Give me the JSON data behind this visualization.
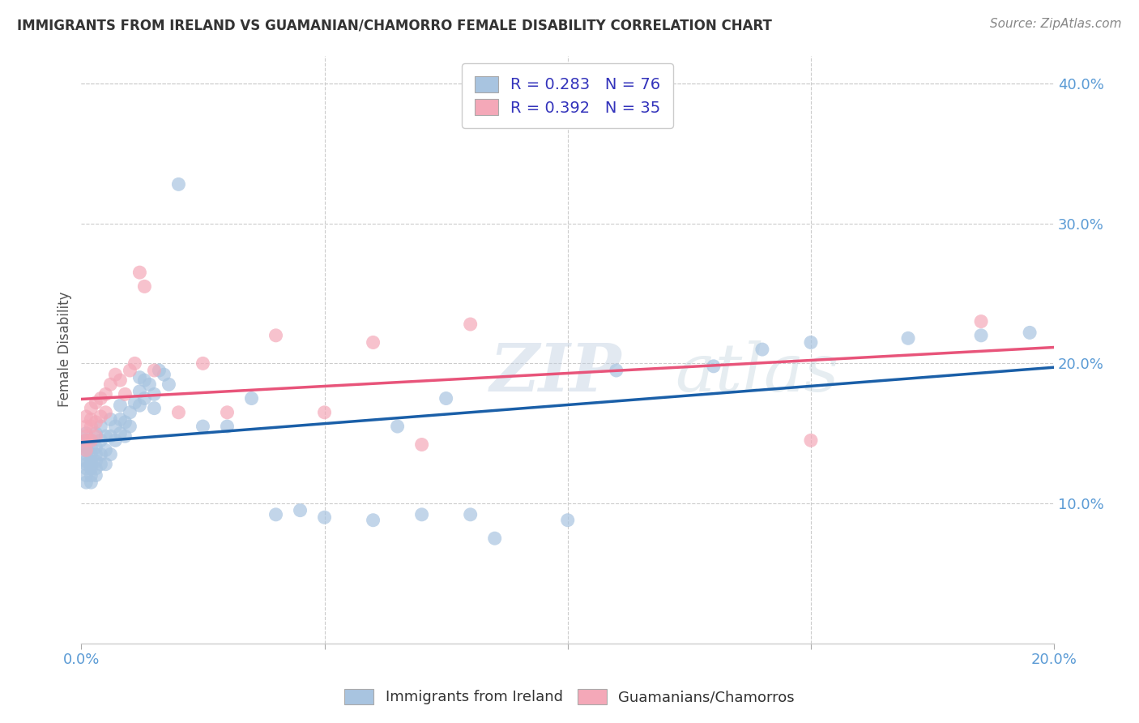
{
  "title": "IMMIGRANTS FROM IRELAND VS GUAMANIAN/CHAMORRO FEMALE DISABILITY CORRELATION CHART",
  "source": "Source: ZipAtlas.com",
  "ylabel": "Female Disability",
  "xlim": [
    0.0,
    0.2
  ],
  "ylim": [
    0.0,
    0.42
  ],
  "xticks": [
    0.0,
    0.05,
    0.1,
    0.15,
    0.2
  ],
  "yticks": [
    0.1,
    0.2,
    0.3,
    0.4
  ],
  "xticklabels": [
    "0.0%",
    "",
    "",
    "",
    "20.0%"
  ],
  "yticklabels": [
    "10.0%",
    "20.0%",
    "30.0%",
    "40.0%"
  ],
  "ireland_color": "#a8c4e0",
  "chamorro_color": "#f4a8b8",
  "ireland_line_color": "#1a5fa8",
  "chamorro_line_color": "#e8547a",
  "R_ireland": 0.283,
  "N_ireland": 76,
  "R_chamorro": 0.392,
  "N_chamorro": 35,
  "watermark": "ZIPatlas",
  "legend_label_ireland": "Immigrants from Ireland",
  "legend_label_chamorro": "Guamanians/Chamorros",
  "ireland_x": [
    0.001,
    0.001,
    0.001,
    0.001,
    0.001,
    0.001,
    0.001,
    0.001,
    0.001,
    0.001,
    0.002,
    0.002,
    0.002,
    0.002,
    0.002,
    0.002,
    0.002,
    0.002,
    0.003,
    0.003,
    0.003,
    0.003,
    0.003,
    0.003,
    0.004,
    0.004,
    0.004,
    0.004,
    0.005,
    0.005,
    0.005,
    0.006,
    0.006,
    0.006,
    0.007,
    0.007,
    0.008,
    0.008,
    0.008,
    0.009,
    0.009,
    0.01,
    0.01,
    0.011,
    0.012,
    0.012,
    0.012,
    0.013,
    0.013,
    0.014,
    0.015,
    0.015,
    0.016,
    0.017,
    0.018,
    0.02,
    0.025,
    0.03,
    0.035,
    0.04,
    0.045,
    0.05,
    0.06,
    0.065,
    0.07,
    0.075,
    0.08,
    0.085,
    0.1,
    0.11,
    0.13,
    0.14,
    0.15,
    0.17,
    0.185,
    0.195
  ],
  "ireland_y": [
    0.13,
    0.14,
    0.145,
    0.15,
    0.135,
    0.128,
    0.12,
    0.115,
    0.125,
    0.138,
    0.145,
    0.135,
    0.125,
    0.13,
    0.12,
    0.115,
    0.14,
    0.128,
    0.15,
    0.14,
    0.13,
    0.12,
    0.125,
    0.135,
    0.155,
    0.145,
    0.135,
    0.128,
    0.148,
    0.138,
    0.128,
    0.16,
    0.148,
    0.135,
    0.155,
    0.145,
    0.17,
    0.16,
    0.15,
    0.158,
    0.148,
    0.165,
    0.155,
    0.172,
    0.19,
    0.18,
    0.17,
    0.188,
    0.175,
    0.185,
    0.178,
    0.168,
    0.195,
    0.192,
    0.185,
    0.328,
    0.155,
    0.155,
    0.175,
    0.092,
    0.095,
    0.09,
    0.088,
    0.155,
    0.092,
    0.175,
    0.092,
    0.075,
    0.088,
    0.195,
    0.198,
    0.21,
    0.215,
    0.218,
    0.22,
    0.222
  ],
  "chamorro_x": [
    0.001,
    0.001,
    0.001,
    0.001,
    0.001,
    0.002,
    0.002,
    0.002,
    0.002,
    0.003,
    0.003,
    0.003,
    0.004,
    0.004,
    0.005,
    0.005,
    0.006,
    0.007,
    0.008,
    0.009,
    0.01,
    0.011,
    0.012,
    0.013,
    0.015,
    0.02,
    0.025,
    0.03,
    0.04,
    0.05,
    0.06,
    0.07,
    0.08,
    0.15,
    0.185
  ],
  "chamorro_y": [
    0.148,
    0.155,
    0.162,
    0.145,
    0.138,
    0.16,
    0.168,
    0.145,
    0.155,
    0.172,
    0.158,
    0.148,
    0.175,
    0.162,
    0.178,
    0.165,
    0.185,
    0.192,
    0.188,
    0.178,
    0.195,
    0.2,
    0.265,
    0.255,
    0.195,
    0.165,
    0.2,
    0.165,
    0.22,
    0.165,
    0.215,
    0.142,
    0.228,
    0.145,
    0.23
  ]
}
